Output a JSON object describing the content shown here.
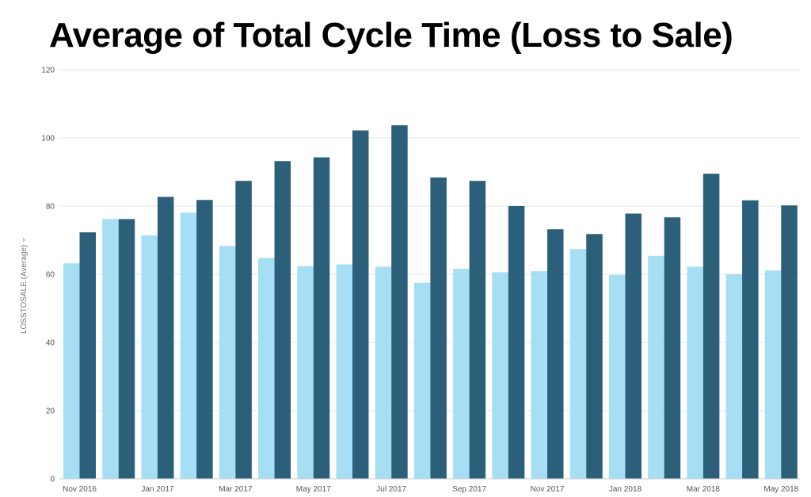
{
  "colors": {
    "series_light": "#a6def4",
    "series_dark": "#2b5f7a",
    "grid": "#e6e6e6",
    "axis": "#555555"
  },
  "chart_data": {
    "type": "bar",
    "title": "Average of Total Cycle Time (Loss to Sale)",
    "ylabel": "LOSSTOSALE (Average)",
    "ylabel_icon": "chevron-down-icon",
    "ylim": [
      0,
      120
    ],
    "yticks": [
      0,
      20,
      40,
      60,
      80,
      100,
      120
    ],
    "ytick_labels": [
      "0",
      "20",
      "40",
      "60",
      "80",
      "100",
      "120"
    ],
    "categories": [
      "Nov 2016",
      "Dec 2016",
      "Jan 2017",
      "Feb 2017",
      "Mar 2017",
      "Apr 2017",
      "May 2017",
      "Jun 2017",
      "Jul 2017",
      "Aug 2017",
      "Sep 2017",
      "Oct 2017",
      "Nov 2017",
      "Dec 2017",
      "Jan 2018",
      "Feb 2018",
      "Mar 2018",
      "Apr 2018",
      "May 2018"
    ],
    "xtick_labels": [
      "Nov 2016",
      "",
      "Jan 2017",
      "",
      "Mar 2017",
      "",
      "May 2017",
      "",
      "Jul 2017",
      "",
      "Sep 2017",
      "",
      "Nov 2017",
      "",
      "Jan 2018",
      "",
      "Mar 2018",
      "",
      "May 2018"
    ],
    "series": [
      {
        "values": [
          63.2,
          76.2,
          71.4,
          78.1,
          68.3,
          64.8,
          62.4,
          62.9,
          62.2,
          57.5,
          61.6,
          60.6,
          60.9,
          67.4,
          59.8,
          65.4,
          62.2,
          60.0,
          61.1
        ]
      },
      {
        "values": [
          72.3,
          76.2,
          82.7,
          81.8,
          87.4,
          93.2,
          94.3,
          102.2,
          103.7,
          88.4,
          87.4,
          80.0,
          73.2,
          71.8,
          77.8,
          76.7,
          89.5,
          81.7,
          80.2
        ]
      }
    ],
    "grid": true,
    "legend": "none"
  }
}
